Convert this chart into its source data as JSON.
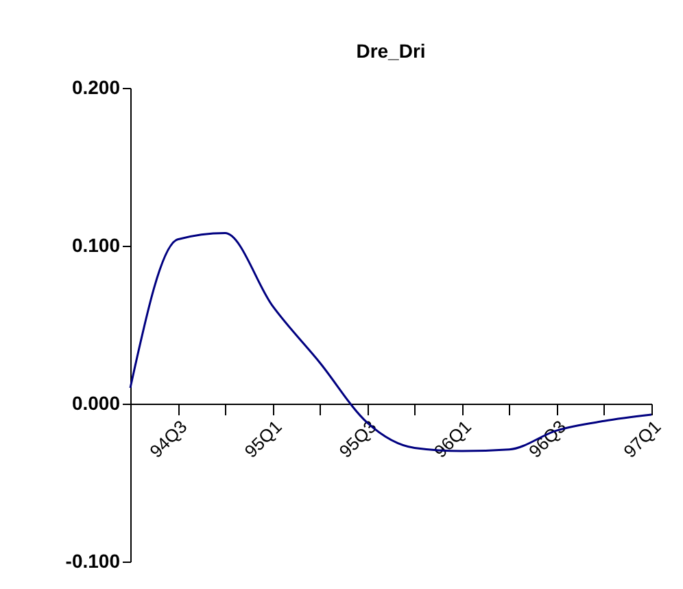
{
  "chart_data": {
    "type": "line",
    "title": "Dre_Dri",
    "categories": [
      null,
      "94Q3",
      null,
      "95Q1",
      null,
      "95Q3",
      null,
      "96Q1",
      null,
      "96Q3",
      null,
      "97Q1"
    ],
    "series": [
      {
        "color": "#000080",
        "values": [
          0.01,
          0.104,
          0.108,
          0.062,
          0.026,
          -0.012,
          -0.028,
          -0.03,
          -0.029,
          -0.017,
          -0.011,
          -0.007
        ]
      }
    ],
    "ylim": [
      -0.1,
      0.2
    ],
    "yticks": [
      {
        "value": -0.1,
        "label": "-0.100"
      },
      {
        "value": 0,
        "label": "0.000"
      },
      {
        "value": 0.1,
        "label": "0.100"
      },
      {
        "value": 0.2,
        "label": "0.200"
      }
    ],
    "grid": false,
    "marker": "none",
    "line_style": "solid"
  }
}
